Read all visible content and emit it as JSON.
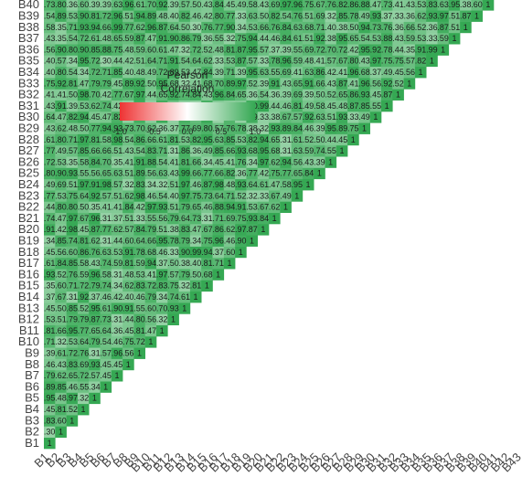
{
  "chart_data": {
    "type": "heatmap",
    "shape": "lower-triangular correlation matrix",
    "labels": [
      "B1",
      "B2",
      "B3",
      "B4",
      "B5",
      "B6",
      "B7",
      "B8",
      "B9",
      "B10",
      "B11",
      "B12",
      "B13",
      "B14",
      "B15",
      "B16",
      "B17",
      "B18",
      "B19",
      "B20",
      "B21",
      "B22",
      "B23",
      "B24",
      "B25",
      "B26",
      "B27",
      "B28",
      "B29",
      "B30",
      "B31",
      "B32",
      "B33",
      "B34",
      "B35",
      "B36",
      "B37",
      "B38",
      "B39",
      "B40",
      "B41",
      "B42",
      "B43"
    ],
    "y_order": "B1 at bottom, B43 at top",
    "x_order": "B1 at left, B43 at right",
    "diagonal_value": 1.0,
    "value_range": [
      -1.0,
      1.0
    ],
    "observed_off_diagonal_range": [
      0.3,
      0.99
    ],
    "cell_labels_shown": true,
    "legend": {
      "title_line1": "Pearson",
      "title_line2": "Correlation",
      "ticks": [
        "-1.0",
        "-0.5",
        "0.0",
        "0.5",
        "1.0"
      ],
      "placement": "top-left",
      "colors": {
        "low": "#ee3333",
        "mid": "#ffffff",
        "high": "#35a853"
      }
    }
  }
}
